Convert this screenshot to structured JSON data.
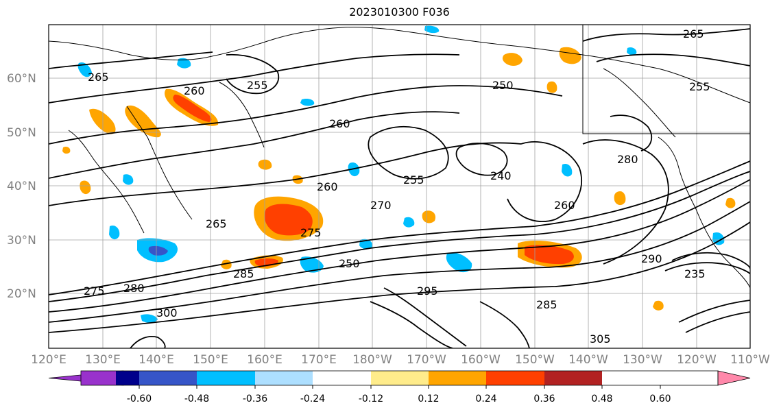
{
  "title": "2023010300 F036",
  "lat_labels": [
    "60°N",
    "50°N",
    "40°N",
    "30°N",
    "20°N"
  ],
  "lon_labels": [
    "120°E",
    "130°E",
    "140°E",
    "150°E",
    "160°E",
    "170°E",
    "180°W",
    "170°W",
    "160°W",
    "150°W",
    "140°W",
    "130°W",
    "120°W",
    "110°W"
  ],
  "colorbar": {
    "colors": [
      "#9932CC",
      "#00008B",
      "#3655C8",
      "#00BFFF",
      "#ADDFFF",
      "#FFFFFF",
      "#FFEC8B",
      "#FFA500",
      "#FF4000",
      "#B22222",
      "#FF88AA"
    ],
    "tick_labels": [
      "-0.60",
      "-0.48",
      "-0.36",
      "-0.24",
      "-0.12",
      "0.12",
      "0.24",
      "0.36",
      "0.48",
      "0.60"
    ]
  },
  "contour_labels": [
    "265",
    "255",
    "260",
    "255",
    "260",
    "270",
    "275",
    "265",
    "285",
    "280",
    "275",
    "260",
    "235",
    "255",
    "250",
    "300",
    "305",
    "290",
    "285",
    "280",
    "295",
    "250",
    "240",
    "260",
    "265"
  ],
  "colors": {
    "orange": "#FFA500",
    "red": "#FF4000",
    "yellow": "#FFEC8B",
    "blue": "#00BFFF",
    "lightblue": "#ADDFFF",
    "darkblue": "#3655C8",
    "navy": "#00008B",
    "purple": "#9932CC"
  }
}
